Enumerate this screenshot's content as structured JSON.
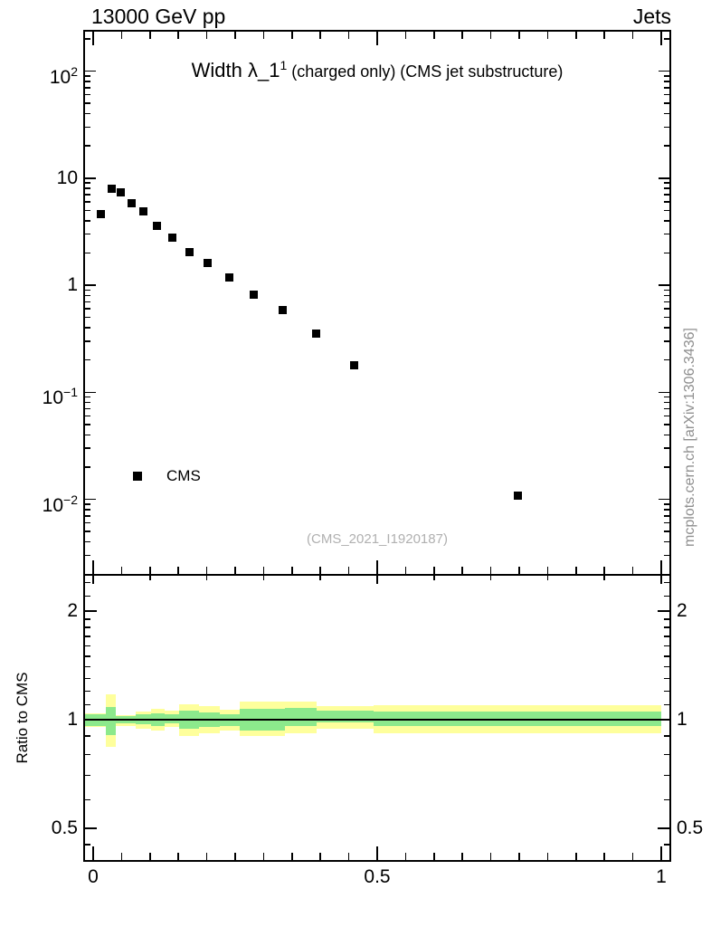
{
  "header": {
    "left": "13000 GeV pp",
    "right": "Jets"
  },
  "title": {
    "text": "Width λ_1",
    "sup": "1",
    "suffix": " (charged only) (CMS jet substructure)"
  },
  "watermark": "(CMS_2021_I1920187)",
  "side_note": "mcplots.cern.ch [arXiv:1306.3436]",
  "legend": {
    "label": "CMS",
    "marker": "filled-square-icon"
  },
  "colors": {
    "band_outer": "#feff9c",
    "band_inner": "#8ce98c",
    "marker": "#000000",
    "muted_text": "#8f8f8f",
    "watermark_text": "#b0b0b0",
    "frame": "#000000"
  },
  "chart_data": {
    "type": "scatter",
    "title": "Width λ_1^1 (charged only) (CMS jet substructure)",
    "xlabel": "",
    "xlim": [
      -0.017,
      1.017
    ],
    "x_major_ticks": [
      0,
      0.5,
      1
    ],
    "x_major_tick_labels": [
      "0",
      "0.5",
      "1"
    ],
    "x_minor_step": 0.05,
    "grid": false,
    "legend_position": "left-middle",
    "main_panel": {
      "yscale": "log",
      "ylim": [
        0.002,
        243
      ],
      "y_tick_labels": [
        {
          "value": 100,
          "base": "10",
          "exp": "2"
        },
        {
          "value": 10,
          "base": "10",
          "exp": ""
        },
        {
          "value": 1,
          "base": "1",
          "exp": ""
        },
        {
          "value": 0.1,
          "base": "10",
          "exp": "−1"
        },
        {
          "value": 0.01,
          "base": "10",
          "exp": "−2"
        }
      ],
      "series": [
        {
          "name": "CMS",
          "marker": "filled-square",
          "color": "#000000",
          "points": [
            [
              0.014,
              4.6
            ],
            [
              0.032,
              8.0
            ],
            [
              0.048,
              7.3
            ],
            [
              0.068,
              5.8
            ],
            [
              0.089,
              4.85
            ],
            [
              0.113,
              3.6
            ],
            [
              0.139,
              2.8
            ],
            [
              0.169,
              2.05
            ],
            [
              0.202,
              1.6
            ],
            [
              0.239,
              1.17
            ],
            [
              0.283,
              0.82
            ],
            [
              0.334,
              0.58
            ],
            [
              0.392,
              0.35
            ],
            [
              0.46,
              0.18
            ],
            [
              0.747,
              0.0108
            ]
          ]
        }
      ]
    },
    "ratio_panel": {
      "ylabel": "Ratio to CMS",
      "yscale": "log",
      "ylim": [
        0.404,
        2.535
      ],
      "y_tick_labels": [
        {
          "value": 2,
          "label": "2"
        },
        {
          "value": 1,
          "label": "1"
        },
        {
          "value": 0.5,
          "label": "0.5"
        }
      ],
      "y_minor_ticks": [
        2.4,
        2.2,
        1.9,
        1.8,
        1.7,
        1.6,
        1.5,
        1.4,
        1.3,
        1.2,
        1.1,
        0.9,
        0.8,
        0.7,
        0.6,
        0.45
      ],
      "reference_line": 1,
      "bands": [
        {
          "x0": -0.017,
          "x1": 0.022,
          "outer": [
            0.955,
            1.041
          ],
          "inner": [
            0.96,
            1.035
          ]
        },
        {
          "x0": 0.022,
          "x1": 0.04,
          "outer": [
            0.841,
            1.176
          ],
          "inner": [
            0.906,
            1.084
          ]
        },
        {
          "x0": 0.04,
          "x1": 0.075,
          "outer": [
            0.96,
            1.03
          ],
          "inner": [
            0.977,
            1.023
          ]
        },
        {
          "x0": 0.075,
          "x1": 0.102,
          "outer": [
            0.944,
            1.053
          ],
          "inner": [
            0.972,
            1.035
          ]
        },
        {
          "x0": 0.102,
          "x1": 0.126,
          "outer": [
            0.933,
            1.072
          ],
          "inner": [
            0.96,
            1.041
          ]
        },
        {
          "x0": 0.126,
          "x1": 0.151,
          "outer": [
            0.955,
            1.059
          ],
          "inner": [
            0.977,
            1.035
          ]
        },
        {
          "x0": 0.151,
          "x1": 0.186,
          "outer": [
            0.901,
            1.103
          ],
          "inner": [
            0.944,
            1.059
          ]
        },
        {
          "x0": 0.186,
          "x1": 0.223,
          "outer": [
            0.917,
            1.09
          ],
          "inner": [
            0.955,
            1.047
          ]
        },
        {
          "x0": 0.223,
          "x1": 0.258,
          "outer": [
            0.933,
            1.066
          ],
          "inner": [
            0.96,
            1.035
          ]
        },
        {
          "x0": 0.258,
          "x1": 0.338,
          "outer": [
            0.901,
            1.122
          ],
          "inner": [
            0.933,
            1.072
          ]
        },
        {
          "x0": 0.338,
          "x1": 0.393,
          "outer": [
            0.917,
            1.122
          ],
          "inner": [
            0.96,
            1.078
          ]
        },
        {
          "x0": 0.393,
          "x1": 0.494,
          "outer": [
            0.944,
            1.09
          ],
          "inner": [
            0.983,
            1.059
          ]
        },
        {
          "x0": 0.494,
          "x1": 1.0,
          "outer": [
            0.917,
            1.097
          ],
          "inner": [
            0.96,
            1.053
          ]
        }
      ]
    }
  }
}
